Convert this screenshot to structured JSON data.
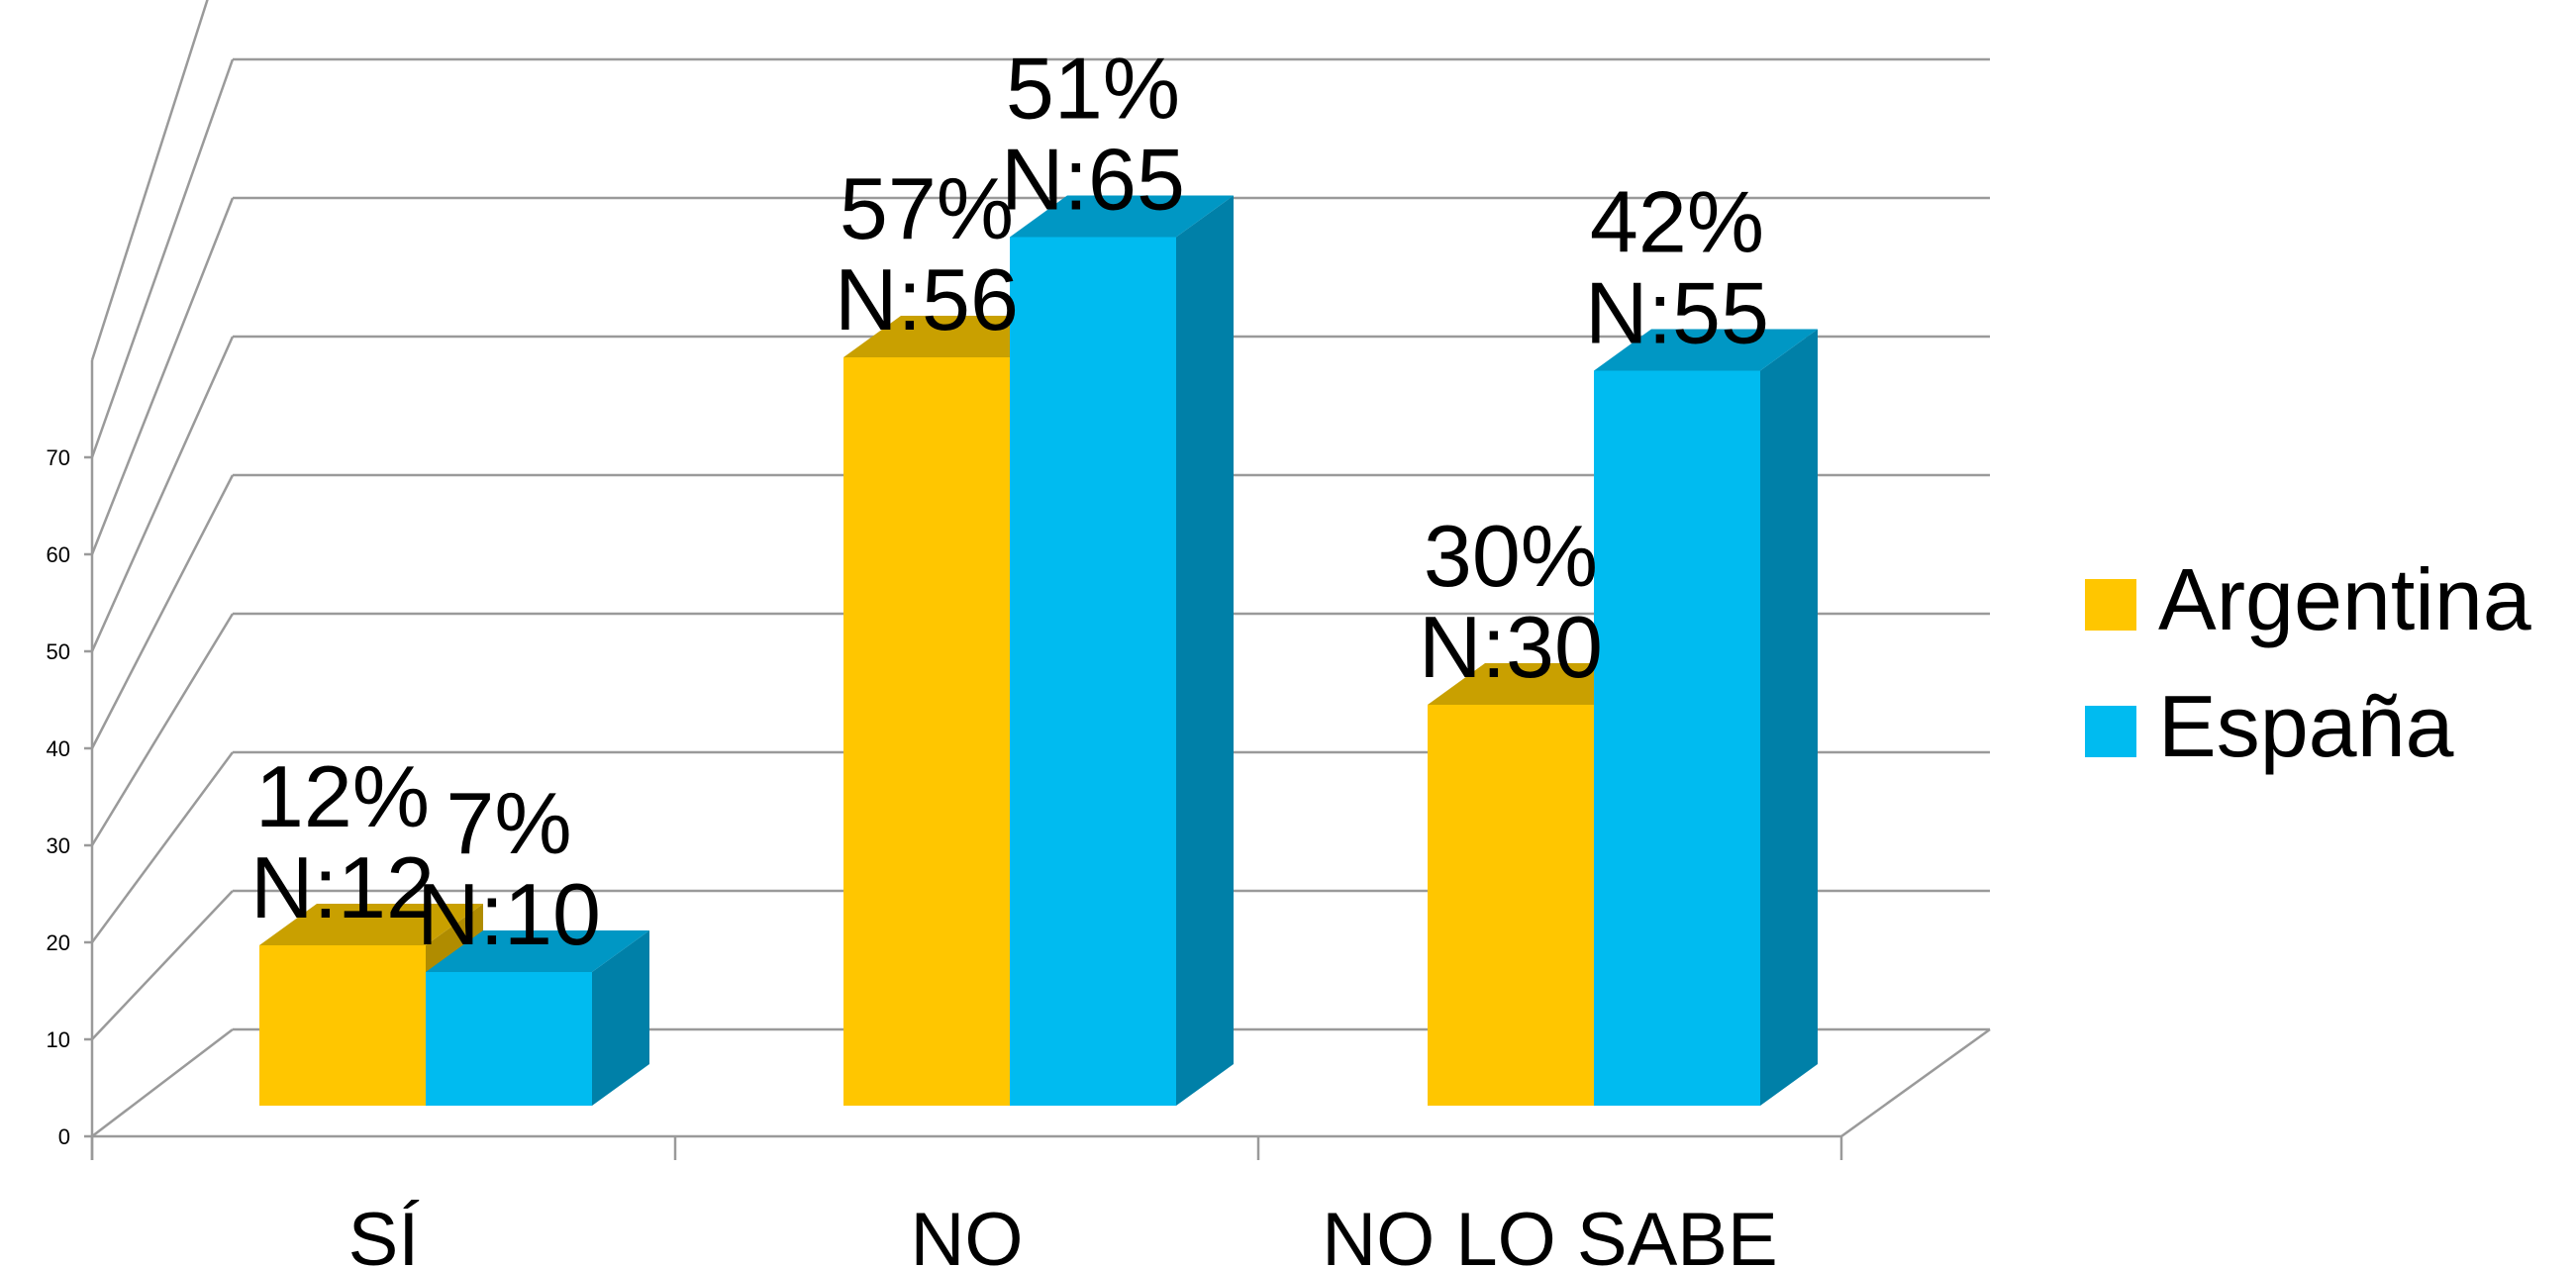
{
  "chart_data": {
    "type": "bar",
    "categories": [
      "SÍ",
      "NO",
      "NO LO SABE"
    ],
    "series": [
      {
        "name": "Argentina",
        "values": [
          12,
          56,
          30
        ],
        "labels": [
          "12%\nN:12",
          "57%\nN:56",
          "30%\nN:30"
        ],
        "color": "#FFC600",
        "top_color": "#C9A000",
        "side_color": "#B08C00"
      },
      {
        "name": "España",
        "values": [
          10,
          65,
          55
        ],
        "labels": [
          "7%\nN:10",
          "51%\nN:65",
          "42%\nN:55"
        ],
        "color": "#00BBF0",
        "top_color": "#0097C4",
        "side_color": "#0080A8"
      }
    ],
    "ylim": [
      0,
      70
    ],
    "yticks": [
      "0",
      "10",
      "20",
      "30",
      "40",
      "50",
      "60",
      "70"
    ],
    "grid": true,
    "legend": "right",
    "style": "3d-clustered-column"
  }
}
